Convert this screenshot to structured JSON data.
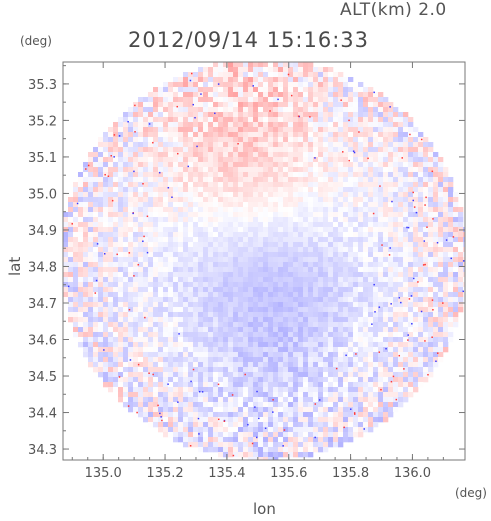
{
  "header": {
    "timestamp": "2012/09/14 15:16:33",
    "altitude": "ALT(km) 2.0"
  },
  "chart_data": {
    "type": "heatmap",
    "title": "2012/09/14 15:16:33",
    "subtitle": "ALT(km) 2.0",
    "xlabel": "lon",
    "ylabel": "lat",
    "x_unit": "(deg)",
    "y_unit": "(deg)",
    "xlim": [
      134.87,
      136.17
    ],
    "ylim": [
      34.27,
      35.36
    ],
    "x_ticks": [
      135.0,
      135.2,
      135.4,
      135.6,
      135.8,
      136.0
    ],
    "x_tick_labels": [
      "135.0",
      "135.2",
      "135.4",
      "135.6",
      "135.8",
      "136.0"
    ],
    "y_ticks": [
      34.3,
      34.4,
      34.5,
      34.6,
      34.7,
      34.8,
      34.9,
      35.0,
      35.1,
      35.2,
      35.3
    ],
    "y_tick_labels": [
      "34.3",
      "34.4",
      "34.5",
      "34.6",
      "34.7",
      "34.8",
      "34.9",
      "35.0",
      "35.1",
      "35.2",
      "35.3"
    ],
    "domain": {
      "shape": "circle",
      "center": [
        135.52,
        34.82
      ],
      "radius_lon": 0.66,
      "radius_lat": 0.55
    },
    "colors": {
      "positive": "#ff8c8c",
      "negative": "#8c8cff",
      "zero": "#ffffff"
    },
    "fields": [
      {
        "description_value": "north-center positive",
        "center": [
          135.45,
          35.15
        ],
        "sigma": [
          0.18,
          0.18
        ],
        "amplitude": 0.35
      },
      {
        "description_value": "south-center negative",
        "center": [
          135.55,
          34.6
        ],
        "sigma": [
          0.2,
          0.2
        ],
        "amplitude": -0.35
      },
      {
        "description_value": "middle band negative",
        "center": [
          135.5,
          34.8
        ],
        "sigma": [
          0.3,
          0.12
        ],
        "amplitude": -0.2
      }
    ],
    "grid": false
  }
}
